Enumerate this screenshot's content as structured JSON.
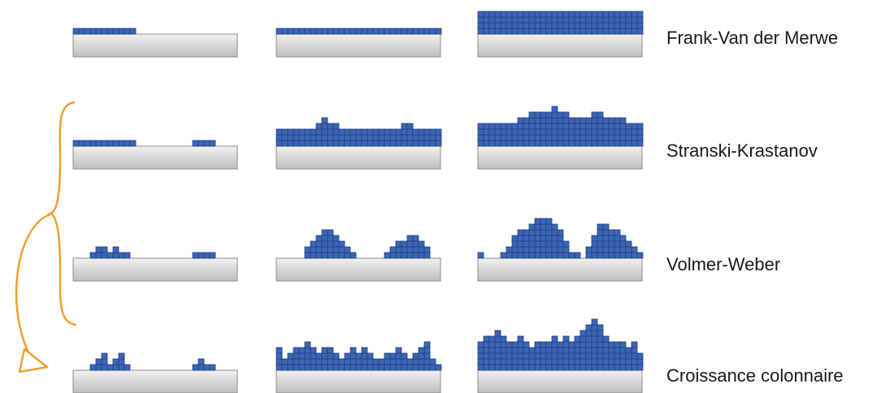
{
  "colors": {
    "block_fill": "#3c66b4",
    "block_stroke": "#1e3f80",
    "substrate_top": "#f2f2f2",
    "substrate_bottom": "#bdbdbd",
    "substrate_stroke": "#8c8c8c",
    "bracket": "#f0a030",
    "label_text": "#1a1a1a"
  },
  "rows": [
    {
      "label": "Frank-Van der Merwe",
      "stages": [
        {
          "columns": [
            1,
            1,
            1,
            1,
            1,
            1,
            1,
            1,
            1,
            1,
            1,
            0,
            0,
            0,
            0,
            0,
            0,
            0,
            0,
            0,
            0,
            0,
            0,
            0,
            0,
            0,
            0,
            0,
            0
          ]
        },
        {
          "columns": [
            1,
            1,
            1,
            1,
            1,
            1,
            1,
            1,
            1,
            1,
            1,
            1,
            1,
            1,
            1,
            1,
            1,
            1,
            1,
            1,
            1,
            1,
            1,
            1,
            1,
            1,
            1,
            1,
            1
          ]
        },
        {
          "columns": [
            4,
            4,
            4,
            4,
            4,
            4,
            4,
            4,
            4,
            4,
            4,
            4,
            4,
            4,
            4,
            4,
            4,
            4,
            4,
            4,
            4,
            4,
            4,
            4,
            4,
            4,
            4,
            4,
            4
          ]
        }
      ]
    },
    {
      "label": "Stranski-Krastanov",
      "stages": [
        {
          "columns": [
            1,
            1,
            1,
            1,
            1,
            1,
            1,
            1,
            1,
            1,
            1,
            0,
            0,
            0,
            0,
            0,
            0,
            0,
            0,
            0,
            0,
            1,
            1,
            1,
            1,
            0,
            0,
            0,
            0
          ]
        },
        {
          "columns": [
            3,
            3,
            3,
            3,
            3,
            3,
            3,
            4,
            5,
            4,
            4,
            3,
            3,
            3,
            3,
            3,
            3,
            3,
            3,
            3,
            3,
            3,
            4,
            4,
            3,
            3,
            3,
            3,
            3
          ]
        },
        {
          "columns": [
            4,
            4,
            4,
            4,
            4,
            4,
            4,
            5,
            5,
            6,
            6,
            6,
            6,
            7,
            6,
            6,
            5,
            5,
            5,
            5,
            6,
            6,
            5,
            5,
            5,
            5,
            4,
            4,
            4
          ]
        }
      ]
    },
    {
      "label": "Volmer-Weber",
      "stages": [
        {
          "columns": [
            0,
            0,
            0,
            1,
            2,
            2,
            1,
            2,
            1,
            1,
            0,
            0,
            0,
            0,
            0,
            0,
            0,
            0,
            0,
            0,
            0,
            1,
            1,
            1,
            1,
            0,
            0,
            0,
            0
          ]
        },
        {
          "columns": [
            0,
            0,
            0,
            0,
            0,
            2,
            3,
            4,
            5,
            5,
            4,
            3,
            2,
            1,
            0,
            0,
            0,
            0,
            0,
            1,
            2,
            3,
            3,
            4,
            4,
            3,
            2,
            0,
            0
          ]
        },
        {
          "columns": [
            1,
            0,
            0,
            0,
            1,
            2,
            4,
            5,
            5,
            6,
            7,
            7,
            7,
            6,
            5,
            3,
            1,
            1,
            0,
            2,
            4,
            6,
            6,
            5,
            5,
            4,
            3,
            2,
            1
          ]
        }
      ]
    },
    {
      "label": "Croissance colonnaire",
      "stages": [
        {
          "columns": [
            0,
            0,
            0,
            1,
            2,
            3,
            1,
            2,
            3,
            1,
            0,
            0,
            0,
            0,
            0,
            0,
            0,
            0,
            0,
            0,
            0,
            1,
            2,
            1,
            1,
            0,
            0,
            0,
            0
          ]
        },
        {
          "columns": [
            4,
            2,
            3,
            4,
            4,
            5,
            4,
            3,
            4,
            4,
            3,
            2,
            3,
            4,
            3,
            4,
            3,
            2,
            2,
            3,
            3,
            4,
            3,
            2,
            3,
            4,
            5,
            2,
            1
          ]
        },
        {
          "columns": [
            5,
            6,
            6,
            7,
            6,
            5,
            5,
            6,
            5,
            4,
            5,
            5,
            5,
            6,
            5,
            6,
            5,
            6,
            7,
            8,
            9,
            8,
            6,
            5,
            5,
            5,
            4,
            5,
            3
          ]
        }
      ]
    }
  ]
}
